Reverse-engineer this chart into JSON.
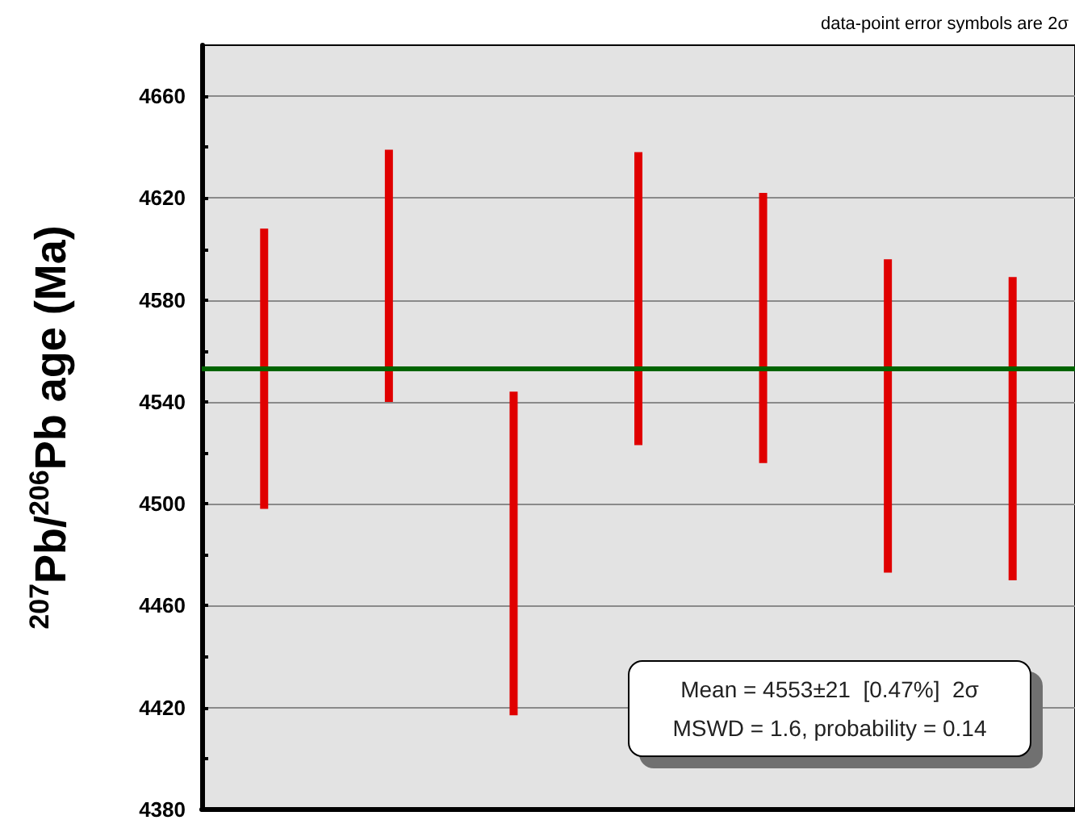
{
  "chart_data": {
    "type": "bar",
    "ylabel": "$^{207}$Pb/$^{206}$Pb age (Ma)",
    "categories": [
      null,
      null,
      null,
      null,
      null,
      null,
      null
    ],
    "base": [
      4498,
      4540,
      4417,
      4523,
      4516,
      4473,
      4470
    ],
    "values": [
      110,
      99,
      127,
      115,
      106,
      123,
      119
    ],
    "color": "#e00000",
    "ylim": [
      4380,
      4680
    ],
    "yticks": [
      4380,
      {
        "value": 4400,
        "label": null
      },
      4420,
      {
        "value": 4440,
        "label": null
      },
      4460,
      {
        "value": 4480,
        "label": null
      },
      4500,
      {
        "value": 4520,
        "label": null
      },
      4540,
      {
        "value": 4560,
        "label": null
      },
      4580,
      {
        "value": 4600,
        "label": null
      },
      4620,
      {
        "value": 4640,
        "label": null
      },
      4660
    ],
    "grid": "y",
    "ref_lines": [
      {
        "axis": "y",
        "value": 4553,
        "label": null,
        "color": "#006400"
      }
    ],
    "annotations": [
      "data-point error symbols are 2σ",
      "Mean = 4553±21  [0.47%]  2σ",
      "MSWD = 1.6, probability = 0.14"
    ]
  }
}
